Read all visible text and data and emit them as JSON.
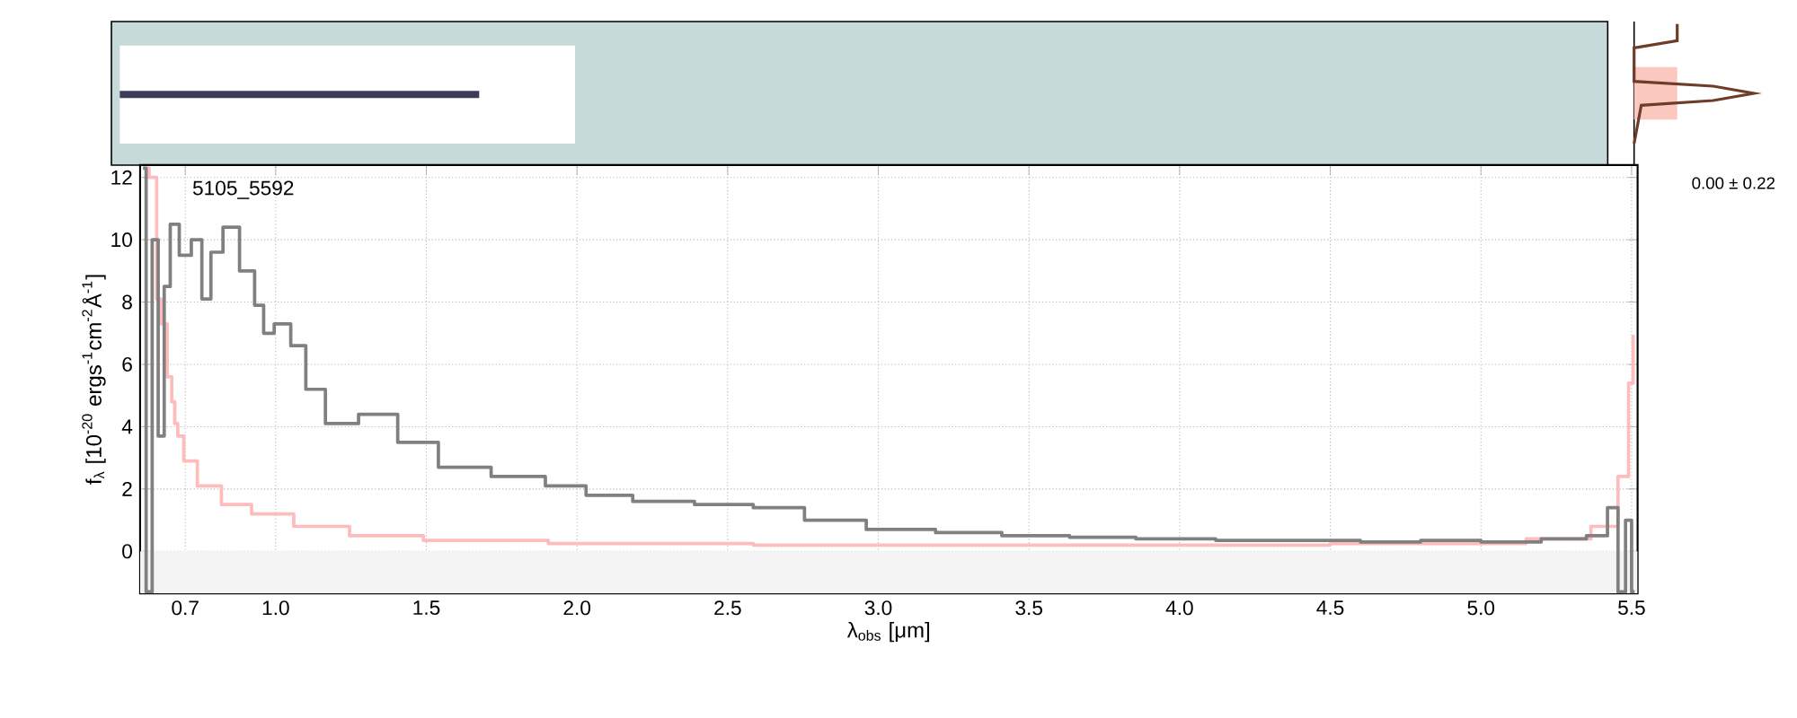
{
  "chart_data": {
    "type": "step",
    "xlabel": "λ$_{obs}$ [μm]",
    "ylabel": "f$_{λ}$ [10$^{-20}$ ergs$^{-1}$cm$^{-2}$Å$^{-1}$]",
    "annotations": [
      "5105_5592",
      "0.00 ± 0.22"
    ],
    "series": [
      {
        "color": "#808080",
        "x": [
          0.56,
          0.58,
          0.6,
          0.62,
          0.64,
          0.66,
          0.7,
          0.74,
          0.77,
          0.8,
          0.85,
          0.91,
          0.95,
          0.97,
          1.02,
          1.08,
          1.12,
          1.21,
          1.34,
          1.47,
          1.61,
          1.82,
          1.97,
          2.09,
          2.28,
          2.5,
          2.67,
          2.84,
          3.08,
          3.3,
          3.52,
          3.75,
          3.96,
          4.28,
          4.5,
          4.7,
          4.9,
          5.1,
          5.3,
          5.4,
          5.44,
          5.47,
          5.49,
          5.51
        ],
        "values": [
          12.3,
          -1.3,
          10,
          3.7,
          8.5,
          10.5,
          9.5,
          10,
          8.1,
          9.6,
          10.4,
          9.0,
          7.9,
          7.0,
          7.3,
          6.6,
          5.2,
          4.1,
          4.4,
          3.5,
          2.7,
          2.4,
          2.1,
          1.8,
          1.6,
          1.5,
          1.4,
          1.0,
          0.7,
          0.6,
          0.5,
          0.45,
          0.4,
          0.35,
          0.35,
          0.3,
          0.35,
          0.3,
          0.4,
          0.5,
          1.4,
          -1.3,
          1.0,
          -1.3
        ]
      },
      {
        "color": "#ffbcbc",
        "x": [
          0.56,
          0.6,
          0.61,
          0.63,
          0.65,
          0.66,
          0.67,
          0.68,
          0.71,
          0.77,
          0.87,
          0.97,
          1.15,
          1.34,
          1.64,
          2.17,
          3.0,
          4.0,
          5.0,
          5.3,
          5.43,
          5.48,
          5.5,
          5.51
        ],
        "values": [
          12.3,
          12,
          8.1,
          7.3,
          5.6,
          4.8,
          4.1,
          3.7,
          2.9,
          2.1,
          1.5,
          1.2,
          0.8,
          0.5,
          0.35,
          0.25,
          0.2,
          0.2,
          0.25,
          0.4,
          0.8,
          2.4,
          5.4,
          6.9
        ]
      }
    ],
    "xlim": [
      0.55,
      5.52
    ],
    "ylim": [
      -1.35,
      12.4
    ],
    "xticks": [
      {
        "value": 0.7,
        "label": "0.7"
      },
      {
        "value": 1.0,
        "label": "1.0"
      },
      {
        "value": 1.5,
        "label": "1.5"
      },
      {
        "value": 2.0,
        "label": "2.0"
      },
      {
        "value": 2.5,
        "label": "2.5"
      },
      {
        "value": 3.0,
        "label": "3.0"
      },
      {
        "value": 3.5,
        "label": "3.5"
      },
      {
        "value": 4.0,
        "label": "4.0"
      },
      {
        "value": 4.5,
        "label": "4.5"
      },
      {
        "value": 5.0,
        "label": "5.0"
      },
      {
        "value": 5.5,
        "label": "5.5"
      }
    ],
    "yticks": [
      0,
      2,
      4,
      6,
      8,
      10,
      12
    ],
    "bands": [
      {
        "axis": "y",
        "from": -1.35,
        "to": 0,
        "color": "#f4f4f4"
      }
    ],
    "grid": true
  }
}
